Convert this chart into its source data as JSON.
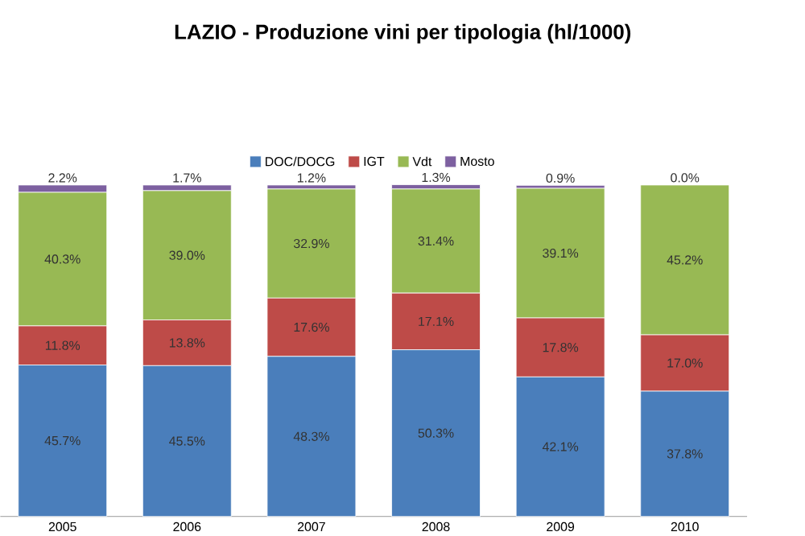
{
  "chart_data": {
    "type": "bar",
    "stacked": true,
    "title": "LAZIO - Produzione vini per tipologia (hl/1000)",
    "categories": [
      "2005",
      "2006",
      "2007",
      "2008",
      "2009",
      "2010"
    ],
    "ylim": [
      0,
      100
    ],
    "legend": "top",
    "series": [
      {
        "name": "DOC/DOCG",
        "color": "#4a7ebb",
        "values": [
          45.7,
          45.5,
          48.3,
          50.3,
          42.1,
          37.8
        ],
        "value_labels": [
          "45.7%",
          "45.5%",
          "48.3%",
          "50.3%",
          "42.1%",
          "37.8%"
        ]
      },
      {
        "name": "IGT",
        "color": "#be4b48",
        "values": [
          11.8,
          13.8,
          17.6,
          17.1,
          17.8,
          17.0
        ],
        "value_labels": [
          "11.8%",
          "13.8%",
          "17.6%",
          "17.1%",
          "17.8%",
          "17.0%"
        ]
      },
      {
        "name": "Vdt",
        "color": "#98b954",
        "values": [
          40.3,
          39.0,
          32.9,
          31.4,
          39.1,
          45.2
        ],
        "value_labels": [
          "40.3%",
          "39.0%",
          "32.9%",
          "31.4%",
          "39.1%",
          "45.2%"
        ]
      },
      {
        "name": "Mosto",
        "color": "#7d60a0",
        "values": [
          2.2,
          1.7,
          1.2,
          1.3,
          0.9,
          0.0
        ],
        "value_labels": [
          "2.2%",
          "1.7%",
          "1.2%",
          "1.3%",
          "0.9%",
          "0.0%"
        ]
      }
    ]
  }
}
